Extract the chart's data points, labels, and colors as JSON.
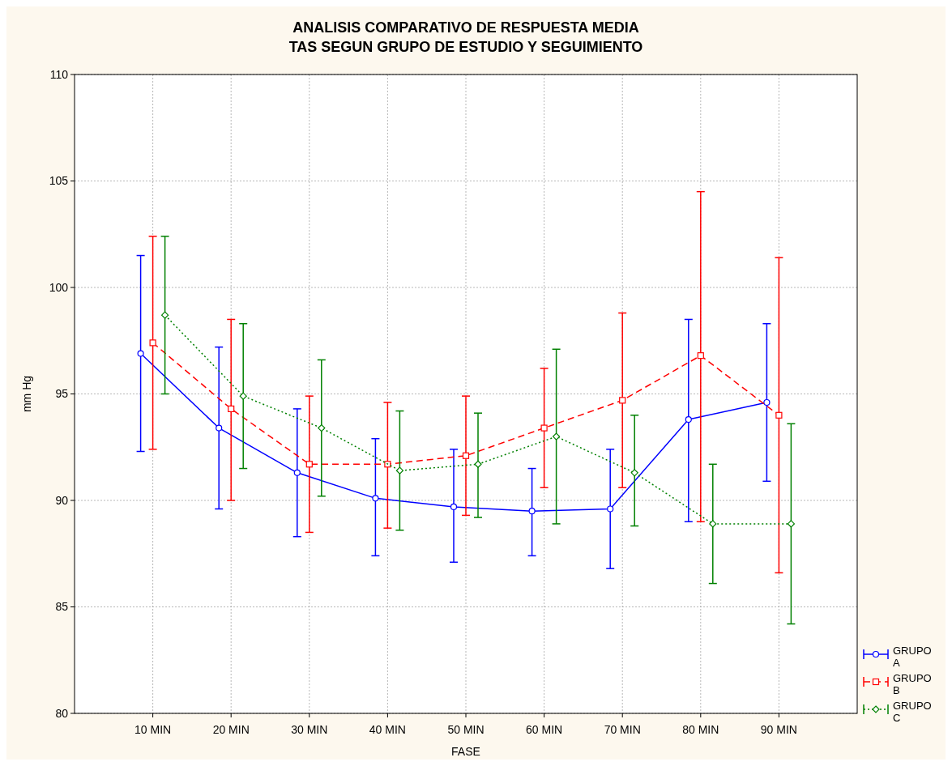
{
  "chart_data": {
    "type": "line",
    "title": "ANALISIS COMPARATIVO DE RESPUESTA MEDIA\nTAS SEGUN GRUPO DE ESTUDIO Y SEGUIMIENTO",
    "xlabel": "FASE",
    "ylabel": "mm Hg",
    "categories": [
      "10 MIN",
      "20 MIN",
      "30 MIN",
      "40 MIN",
      "50 MIN",
      "60 MIN",
      "70 MIN",
      "80 MIN",
      "90 MIN"
    ],
    "ylim": [
      80,
      110
    ],
    "yticks": [
      80,
      85,
      90,
      95,
      100,
      105,
      110
    ],
    "grid": true,
    "legend": "bottom right",
    "series": [
      {
        "name": "GRUPO A",
        "color": "#0000ff",
        "marker": "circle",
        "line_style": "solid",
        "values": [
          96.9,
          93.4,
          91.3,
          90.1,
          89.7,
          89.5,
          89.6,
          93.8,
          94.6
        ],
        "errors": [
          [
            92.3,
            101.5
          ],
          [
            89.6,
            97.2
          ],
          [
            88.3,
            94.3
          ],
          [
            87.4,
            92.9
          ],
          [
            87.1,
            92.4
          ],
          [
            87.4,
            91.5
          ],
          [
            86.8,
            92.4
          ],
          [
            89.0,
            98.5
          ],
          [
            90.9,
            98.3
          ]
        ]
      },
      {
        "name": "GRUPO B",
        "color": "#ff0000",
        "marker": "square",
        "line_style": "dashed",
        "values": [
          97.4,
          94.3,
          91.7,
          91.7,
          92.1,
          93.4,
          94.7,
          96.8,
          94.0
        ],
        "errors": [
          [
            92.4,
            102.4
          ],
          [
            90.0,
            98.5
          ],
          [
            88.5,
            94.9
          ],
          [
            88.7,
            94.6
          ],
          [
            89.3,
            94.9
          ],
          [
            90.6,
            96.2
          ],
          [
            90.6,
            98.8
          ],
          [
            89.0,
            104.5
          ],
          [
            86.6,
            101.4
          ]
        ]
      },
      {
        "name": "GRUPO C",
        "color": "#008000",
        "marker": "diamond",
        "line_style": "dotted",
        "values": [
          98.7,
          94.9,
          93.4,
          91.4,
          91.7,
          93.0,
          91.3,
          88.9,
          88.9
        ],
        "errors": [
          [
            95.0,
            102.4
          ],
          [
            91.5,
            98.3
          ],
          [
            90.2,
            96.6
          ],
          [
            88.6,
            94.2
          ],
          [
            89.2,
            94.1
          ],
          [
            88.9,
            97.1
          ],
          [
            88.8,
            94.0
          ],
          [
            86.1,
            91.7
          ],
          [
            84.2,
            93.6
          ]
        ]
      }
    ]
  }
}
